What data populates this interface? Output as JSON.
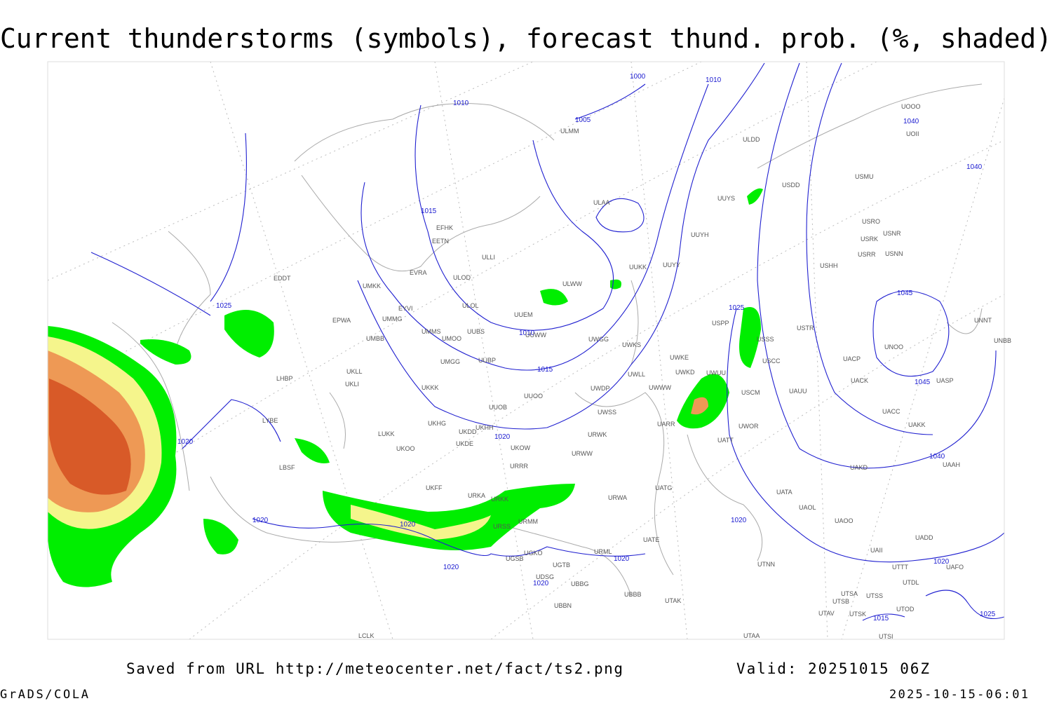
{
  "title": "Current thunderstorms (symbols), forecast thund. prob. (%, shaded)",
  "footer": {
    "saved_from": "Saved from URL http://meteocenter.net/fact/ts2.png",
    "valid": "Valid: 20251015 06Z",
    "software": "GrADS/COLA",
    "timestamp": "2025-10-15-06:01"
  },
  "isobar_labels": [
    1000,
    1010,
    1010,
    1005,
    1040,
    1040,
    1015,
    1025,
    1045,
    1025,
    1010,
    1015,
    1045,
    1020,
    1020,
    1040,
    1020,
    1020,
    1020,
    1020,
    1020,
    1020,
    1020,
    1015,
    1025
  ],
  "stations": [
    "EDDT",
    "EPWA",
    "EYVI",
    "UMKK",
    "UMMG",
    "UMMS",
    "UMOO",
    "UUBS",
    "UMBB",
    "UMGG",
    "UUBP",
    "UKLL",
    "UKLI",
    "LHBP",
    "UKKK",
    "UUOO",
    "UUOB",
    "LYBE",
    "UKHG",
    "UKDD",
    "UKHH",
    "LUKK",
    "UKOO",
    "UKDE",
    "UKOW",
    "LBSF",
    "UKFF",
    "URRR",
    "URKA",
    "URKK",
    "URMM",
    "URSS",
    "UGSB",
    "UGKO",
    "UGTB",
    "URML",
    "UDSG",
    "UBBG",
    "UBBN",
    "UBBB",
    "UTAK",
    "UTAA",
    "LCLK",
    "ULMM",
    "ULDD",
    "ULAA",
    "USDD",
    "UUYS",
    "UUYH",
    "UUYY",
    "UUKK",
    "ULWW",
    "ULOD",
    "EVRA",
    "EFHK",
    "EETN",
    "ULLI",
    "ULOL",
    "UUEM",
    "UUWW",
    "UWGG",
    "UWKS",
    "UWKE",
    "UWKD",
    "UWLL",
    "UWWW",
    "USPP",
    "USSS",
    "USCC",
    "USCM",
    "UWUU",
    "UWDP",
    "UWSS",
    "UARR",
    "UWOR",
    "UATT",
    "URWK",
    "URWW",
    "UATG",
    "URWA",
    "UATE",
    "USTR",
    "UAUU",
    "UATA",
    "UAOL",
    "UAOO",
    "UAKD",
    "UADD",
    "UAII",
    "UTTT",
    "UAFO",
    "UTDL",
    "UTSA",
    "UTSS",
    "UTSB",
    "UTAV",
    "UTSK",
    "UTSI",
    "UTOD",
    "UTNN",
    "UAAH",
    "UACC",
    "UAKK",
    "UACK",
    "UACP",
    "UASP",
    "UNOO",
    "UNNT",
    "UNBB",
    "USHH",
    "USRR",
    "USNN",
    "USRK",
    "USNR",
    "USRO",
    "USMU",
    "UOOO",
    "UOII"
  ]
}
